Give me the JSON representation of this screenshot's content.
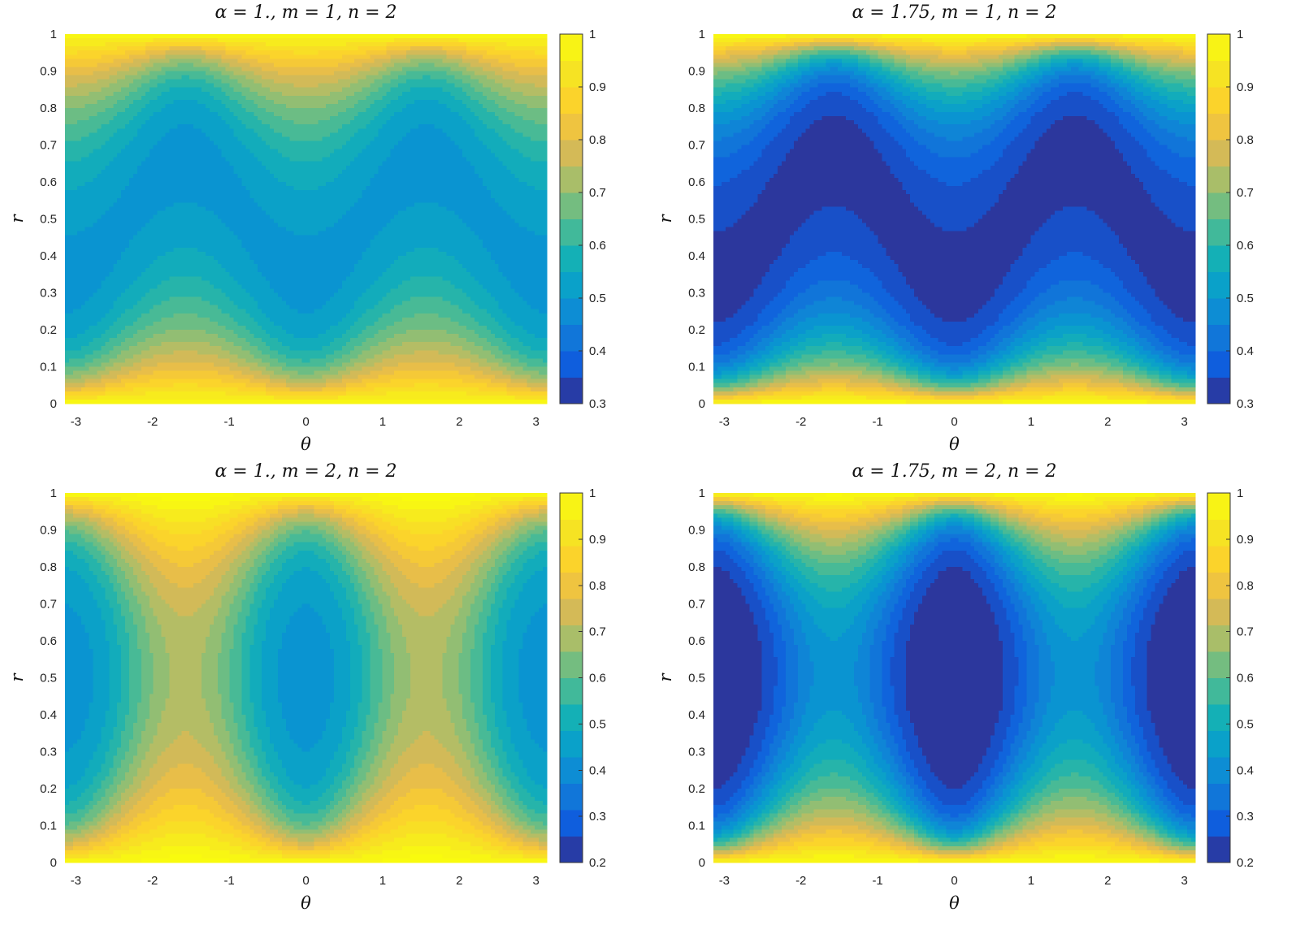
{
  "figure": {
    "background": "#ffffff"
  },
  "chart_data": [
    {
      "type": "heatmap",
      "subtype": "filled-contour",
      "title": "α = 1., m = 1, n = 2",
      "xlabel": "θ",
      "ylabel": "r",
      "xlim": [
        -3.14159,
        3.14159
      ],
      "ylim": [
        0,
        1
      ],
      "xticks": [
        "-3",
        "-2",
        "-1",
        "0",
        "1",
        "2",
        "3"
      ],
      "yticks": [
        "0",
        "0.1",
        "0.2",
        "0.3",
        "0.4",
        "0.5",
        "0.6",
        "0.7",
        "0.8",
        "0.9",
        "1"
      ],
      "colorbar": {
        "range": [
          0.3,
          1
        ],
        "ticks": [
          "0.3",
          "0.4",
          "0.5",
          "0.6",
          "0.7",
          "0.8",
          "0.9",
          "1"
        ]
      },
      "colormap": "parula",
      "alpha": 1.0,
      "m": 1,
      "n": 2,
      "interior_value": 0.45,
      "boundary_value": 1.0,
      "pattern": "peaks near bottom at θ≈±π/2, dip near top at θ=0"
    },
    {
      "type": "heatmap",
      "subtype": "filled-contour",
      "title": "α = 1.75, m = 1, n = 2",
      "xlabel": "θ",
      "ylabel": "r",
      "xlim": [
        -3.14159,
        3.14159
      ],
      "ylim": [
        0,
        1
      ],
      "xticks": [
        "-3",
        "-2",
        "-1",
        "0",
        "1",
        "2",
        "3"
      ],
      "yticks": [
        "0",
        "0.1",
        "0.2",
        "0.3",
        "0.4",
        "0.5",
        "0.6",
        "0.7",
        "0.8",
        "0.9",
        "1"
      ],
      "colorbar": {
        "range": [
          0.3,
          1
        ],
        "ticks": [
          "0.3",
          "0.4",
          "0.5",
          "0.6",
          "0.7",
          "0.8",
          "0.9",
          "1"
        ]
      },
      "colormap": "parula",
      "alpha": 1.75,
      "m": 1,
      "n": 2,
      "interior_value": 0.3,
      "boundary_value": 1.0,
      "pattern": "peaks near bottom at θ≈±π/2, dip near top at θ=0"
    },
    {
      "type": "heatmap",
      "subtype": "filled-contour",
      "title": "α = 1., m = 2, n = 2",
      "xlabel": "θ",
      "ylabel": "r",
      "xlim": [
        -3.14159,
        3.14159
      ],
      "ylim": [
        0,
        1
      ],
      "xticks": [
        "-3",
        "-2",
        "-1",
        "0",
        "1",
        "2",
        "3"
      ],
      "yticks": [
        "0",
        "0.1",
        "0.2",
        "0.3",
        "0.4",
        "0.5",
        "0.6",
        "0.7",
        "0.8",
        "0.9",
        "1"
      ],
      "colorbar": {
        "range": [
          0.2,
          1
        ],
        "ticks": [
          "0.2",
          "0.3",
          "0.4",
          "0.5",
          "0.6",
          "0.7",
          "0.8",
          "0.9",
          "1"
        ]
      },
      "colormap": "parula",
      "alpha": 1.0,
      "m": 2,
      "n": 2,
      "interior_value": 0.42,
      "boundary_value": 1.0,
      "pattern": "peaks near bottom and dips near top at θ≈±π/2"
    },
    {
      "type": "heatmap",
      "subtype": "filled-contour",
      "title": "α = 1.75, m = 2, n = 2",
      "xlabel": "θ",
      "ylabel": "r",
      "xlim": [
        -3.14159,
        3.14159
      ],
      "ylim": [
        0,
        1
      ],
      "xticks": [
        "-3",
        "-2",
        "-1",
        "0",
        "1",
        "2",
        "3"
      ],
      "yticks": [
        "0",
        "0.1",
        "0.2",
        "0.3",
        "0.4",
        "0.5",
        "0.6",
        "0.7",
        "0.8",
        "0.9",
        "1"
      ],
      "colorbar": {
        "range": [
          0.2,
          1
        ],
        "ticks": [
          "0.2",
          "0.3",
          "0.4",
          "0.5",
          "0.6",
          "0.7",
          "0.8",
          "0.9",
          "1"
        ]
      },
      "colormap": "parula",
      "alpha": 1.75,
      "m": 2,
      "n": 2,
      "interior_value": 0.2,
      "boundary_value": 1.0,
      "pattern": "peaks near bottom and dips near top at θ≈±π/2"
    }
  ]
}
